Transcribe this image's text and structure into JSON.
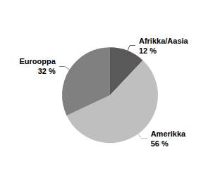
{
  "chart_data": {
    "type": "pie",
    "categories": [
      "Afrikka/Aasia",
      "Amerikka",
      "Eurooppa"
    ],
    "values": [
      12,
      56,
      32
    ],
    "value_labels": [
      "12 %",
      "56 %",
      "32 %"
    ],
    "colors": [
      "#595959",
      "#bfbfbf",
      "#808080"
    ],
    "data_labels": true
  }
}
